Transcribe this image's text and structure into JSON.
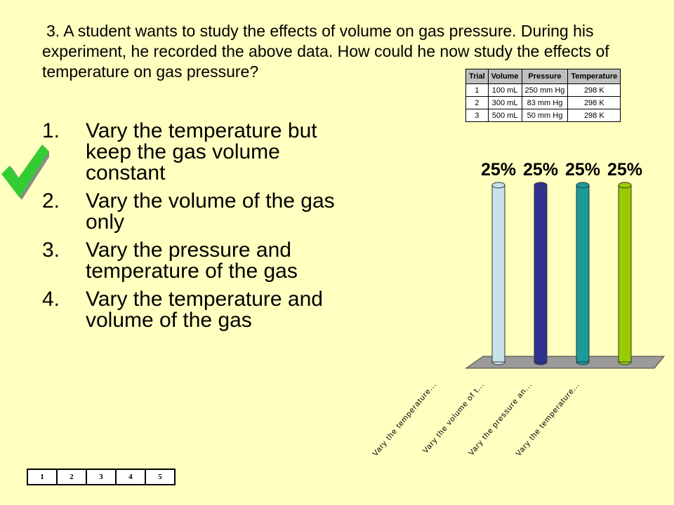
{
  "question": {
    "number": "3.",
    "text": "A student wants to study the effects of volume on gas pressure. During his experiment, he recorded the above data. How could he now study the effects of temperature on gas pressure?"
  },
  "data_table": {
    "headers": [
      "Trial",
      "Volume",
      "Pressure",
      "Temperature"
    ],
    "rows": [
      [
        "1",
        "100 mL",
        "250 mm Hg",
        "298 K"
      ],
      [
        "2",
        "300 mL",
        "83 mm Hg",
        "298 K"
      ],
      [
        "3",
        "500 mL",
        "50 mm Hg",
        "298 K"
      ]
    ]
  },
  "answers": [
    {
      "num": "1.",
      "text": "Vary the temperature but keep the gas volume constant"
    },
    {
      "num": "2.",
      "text": "Vary the volume of the gas only"
    },
    {
      "num": "3.",
      "text": "Vary the pressure and temperature of the gas"
    },
    {
      "num": "4.",
      "text": "Vary the temperature and volume of the gas"
    }
  ],
  "correct_answer_icon": "checkmark-icon",
  "chart_data": {
    "type": "bar",
    "categories": [
      "Vary the temperature...",
      "Vary the volume of t...",
      "Vary the pressure an...",
      "Vary the temperature..."
    ],
    "values": [
      25,
      25,
      25,
      25
    ],
    "value_labels": [
      "25%",
      "25%",
      "25%",
      "25%"
    ],
    "colors": [
      "#C6E2EA",
      "#2E3192",
      "#1A9A9A",
      "#99CC00"
    ],
    "ylim": [
      0,
      25
    ],
    "grid": false
  },
  "pager": [
    "1",
    "2",
    "3",
    "4",
    "5"
  ]
}
